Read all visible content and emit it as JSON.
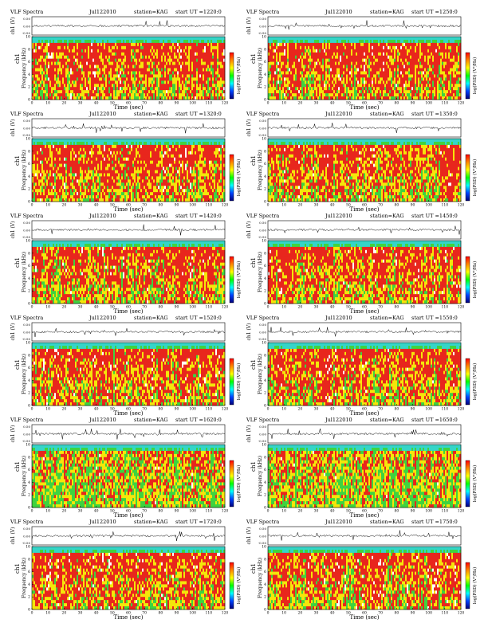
{
  "labels": {
    "title": "VLF Spectra",
    "station_prefix": "station=",
    "start_prefix": "start UT =",
    "waveform_ylabel": "ch1 (V)",
    "channel_label": "ch1",
    "spectrogram_ylabel": "Frequency (kHz)",
    "xlabel": "Time (sec)",
    "colorbar_label": "log(PSD) (V²/Hz)"
  },
  "colors": {
    "background": "#ffffff",
    "spectrum_high": "#e8261d",
    "spectrum_mid": "#f5e60a",
    "spectrum_low": "#3fd33f",
    "spectrum_band": "#35d5c8",
    "colorbar_gradient": [
      "#ff0000",
      "#ff8800",
      "#ffff00",
      "#00ff00",
      "#00ffff",
      "#0044ff",
      "#00007a"
    ]
  },
  "chart_data": [
    {
      "type": "heatmap",
      "title": "VLF Spectra",
      "date": "Jul122010",
      "station": "KAG",
      "start_ut": "1220:0",
      "waveform_yticks": [
        "0.00",
        "0.50",
        "-0.50"
      ],
      "freq_yticks": [
        "0",
        "2",
        "4",
        "6",
        "8",
        "10"
      ],
      "xticks": [
        "0",
        "10",
        "20",
        "30",
        "40",
        "50",
        "60",
        "70",
        "80",
        "90",
        "100",
        "110",
        "120"
      ],
      "xlim": [
        0,
        120
      ],
      "ylim": [
        0,
        10
      ],
      "dominant_level": "high"
    },
    {
      "type": "heatmap",
      "title": "VLF Spectra",
      "date": "Jul122010",
      "station": "KAG",
      "start_ut": "1250:0",
      "waveform_yticks": [
        "0.00",
        "0.50",
        "-0.50"
      ],
      "freq_yticks": [
        "0",
        "2",
        "4",
        "6",
        "8",
        "10"
      ],
      "xticks": [
        "0",
        "10",
        "20",
        "30",
        "40",
        "50",
        "60",
        "70",
        "80",
        "90",
        "100",
        "110",
        "120"
      ],
      "xlim": [
        0,
        120
      ],
      "ylim": [
        0,
        10
      ],
      "dominant_level": "high"
    },
    {
      "type": "heatmap",
      "title": "VLF Spectra",
      "date": "Jul122010",
      "station": "KAG",
      "start_ut": "1320:0",
      "waveform_yticks": [
        "0.00",
        "0.50",
        "-0.50"
      ],
      "freq_yticks": [
        "0",
        "2",
        "4",
        "6",
        "8",
        "10"
      ],
      "xticks": [
        "0",
        "10",
        "20",
        "30",
        "40",
        "50",
        "60",
        "70",
        "80",
        "90",
        "100",
        "110",
        "120"
      ],
      "xlim": [
        0,
        120
      ],
      "ylim": [
        0,
        10
      ],
      "dominant_level": "high"
    },
    {
      "type": "heatmap",
      "title": "VLF Spectra",
      "date": "Jul122010",
      "station": "KAG",
      "start_ut": "1350:0",
      "waveform_yticks": [
        "0.00",
        "0.50",
        "-0.50"
      ],
      "freq_yticks": [
        "0",
        "2",
        "4",
        "6",
        "8",
        "10"
      ],
      "xticks": [
        "0",
        "10",
        "20",
        "30",
        "40",
        "50",
        "60",
        "70",
        "80",
        "90",
        "100",
        "110",
        "120"
      ],
      "xlim": [
        0,
        120
      ],
      "ylim": [
        0,
        10
      ],
      "dominant_level": "high"
    },
    {
      "type": "heatmap",
      "title": "VLF Spectra",
      "date": "Jul122010",
      "station": "KAG",
      "start_ut": "1420:0",
      "waveform_yticks": [
        "0.00",
        "0.50",
        "-0.50"
      ],
      "freq_yticks": [
        "0",
        "2",
        "4",
        "6",
        "8",
        "10"
      ],
      "xticks": [
        "0",
        "10",
        "20",
        "30",
        "40",
        "50",
        "60",
        "70",
        "80",
        "90",
        "100",
        "110",
        "120"
      ],
      "xlim": [
        0,
        120
      ],
      "ylim": [
        0,
        10
      ],
      "dominant_level": "high"
    },
    {
      "type": "heatmap",
      "title": "VLF Spectra",
      "date": "Jul122010",
      "station": "KAG",
      "start_ut": "1450:0",
      "waveform_yticks": [
        "0.00",
        "0.50",
        "-0.50"
      ],
      "freq_yticks": [
        "0",
        "2",
        "4",
        "6",
        "8",
        "10"
      ],
      "xticks": [
        "0",
        "10",
        "20",
        "30",
        "40",
        "50",
        "60",
        "70",
        "80",
        "90",
        "100",
        "110",
        "120"
      ],
      "xlim": [
        0,
        120
      ],
      "ylim": [
        0,
        10
      ],
      "dominant_level": "high"
    },
    {
      "type": "heatmap",
      "title": "VLF Spectra",
      "date": "Jul122010",
      "station": "KAG",
      "start_ut": "1520:0",
      "waveform_yticks": [
        "0.00",
        "0.50",
        "-0.50"
      ],
      "freq_yticks": [
        "0",
        "2",
        "4",
        "6",
        "8",
        "10"
      ],
      "xticks": [
        "0",
        "10",
        "20",
        "30",
        "40",
        "50",
        "60",
        "70",
        "80",
        "90",
        "100",
        "110",
        "120"
      ],
      "xlim": [
        0,
        120
      ],
      "ylim": [
        0,
        10
      ],
      "dominant_level": "high"
    },
    {
      "type": "heatmap",
      "title": "VLF Spectra",
      "date": "Jul122010",
      "station": "KAG",
      "start_ut": "1550:0",
      "waveform_yticks": [
        "0.00",
        "0.50",
        "-0.50"
      ],
      "freq_yticks": [
        "0",
        "2",
        "4",
        "6",
        "8",
        "10"
      ],
      "xticks": [
        "0",
        "10",
        "20",
        "30",
        "40",
        "50",
        "60",
        "70",
        "80",
        "90",
        "100",
        "110",
        "120"
      ],
      "xlim": [
        0,
        120
      ],
      "ylim": [
        0,
        10
      ],
      "dominant_level": "high"
    },
    {
      "type": "heatmap",
      "title": "VLF Spectra",
      "date": "Jul122010",
      "station": "KAG",
      "start_ut": "1620:0",
      "waveform_yticks": [
        "0.00",
        "0.50",
        "-0.50"
      ],
      "freq_yticks": [
        "0",
        "2",
        "4",
        "6",
        "8",
        "10"
      ],
      "xticks": [
        "0",
        "10",
        "20",
        "30",
        "40",
        "50",
        "60",
        "70",
        "80",
        "90",
        "100",
        "110",
        "120"
      ],
      "xlim": [
        0,
        120
      ],
      "ylim": [
        0,
        10
      ],
      "dominant_level": "mid"
    },
    {
      "type": "heatmap",
      "title": "VLF Spectra",
      "date": "Jul122010",
      "station": "KAG",
      "start_ut": "1650:0",
      "waveform_yticks": [
        "0.00",
        "0.50",
        "-0.50"
      ],
      "freq_yticks": [
        "0",
        "2",
        "4",
        "6",
        "8",
        "10"
      ],
      "xticks": [
        "0",
        "10",
        "20",
        "30",
        "40",
        "50",
        "60",
        "70",
        "80",
        "90",
        "100",
        "110",
        "120"
      ],
      "xlim": [
        0,
        120
      ],
      "ylim": [
        0,
        10
      ],
      "dominant_level": "mid"
    },
    {
      "type": "heatmap",
      "title": "VLF Spectra",
      "date": "Jul122010",
      "station": "KAG",
      "start_ut": "1720:0",
      "waveform_yticks": [
        "0.00",
        "0.50",
        "-0.50"
      ],
      "freq_yticks": [
        "0",
        "2",
        "4",
        "6",
        "8",
        "10"
      ],
      "xticks": [
        "0",
        "10",
        "20",
        "30",
        "40",
        "50",
        "60",
        "70",
        "80",
        "90",
        "100",
        "110",
        "120"
      ],
      "xlim": [
        0,
        120
      ],
      "ylim": [
        0,
        10
      ],
      "dominant_level": "high"
    },
    {
      "type": "heatmap",
      "title": "VLF Spectra",
      "date": "Jul122010",
      "station": "KAG",
      "start_ut": "1750:0",
      "waveform_yticks": [
        "0.00",
        "0.50",
        "-0.50"
      ],
      "freq_yticks": [
        "0",
        "2",
        "4",
        "6",
        "8",
        "10"
      ],
      "xticks": [
        "0",
        "10",
        "20",
        "30",
        "40",
        "50",
        "60",
        "70",
        "80",
        "90",
        "100",
        "110",
        "120"
      ],
      "xlim": [
        0,
        120
      ],
      "ylim": [
        0,
        10
      ],
      "dominant_level": "high"
    }
  ]
}
